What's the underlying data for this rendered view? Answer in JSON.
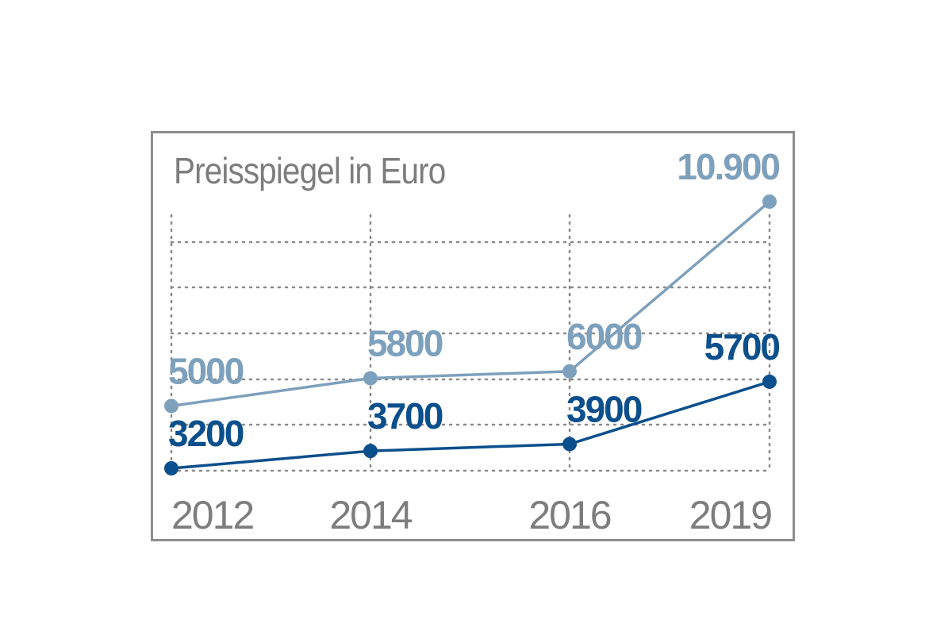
{
  "chart_data": {
    "type": "line",
    "title": "Preisspiegel in Euro",
    "categories": [
      "2012",
      "2014",
      "2016",
      "2019"
    ],
    "series": [
      {
        "values": [
          5000,
          5800,
          6000,
          10900
        ],
        "labels": [
          "5000",
          "5800",
          "6000",
          "10.900"
        ],
        "color": "#7da0bd"
      },
      {
        "values": [
          3200,
          3700,
          3900,
          5700
        ],
        "labels": [
          "3200",
          "3700",
          "3900",
          "5700"
        ],
        "color": "#0b4f8c"
      }
    ],
    "grid": true,
    "grid_color": "#8a8a8a",
    "title_color": "#7d7d7d",
    "border_color": "#8e8e8e"
  }
}
